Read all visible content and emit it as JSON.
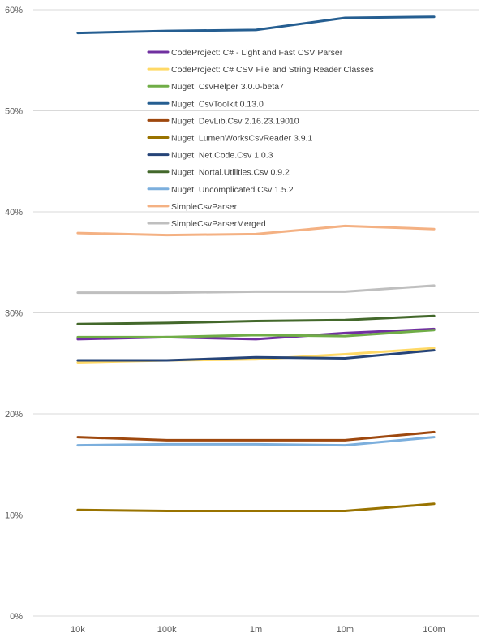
{
  "chart_data": {
    "type": "line",
    "categories": [
      "10k",
      "100k",
      "1m",
      "10m",
      "100m"
    ],
    "ylim": [
      0,
      60
    ],
    "y_ticks": [
      "0%",
      "10%",
      "20%",
      "30%",
      "40%",
      "50%",
      "60%"
    ],
    "grid": "horizontal",
    "legend_position": "top-center",
    "series": [
      {
        "name": "CodeProject: C# - Light and Fast CSV Parser",
        "color": "#7030A0",
        "values": [
          27.4,
          27.6,
          27.4,
          28.0,
          28.4
        ]
      },
      {
        "name": "CodeProject: C# CSV File and String Reader Classes",
        "color": "#FFD966",
        "values": [
          25.1,
          25.3,
          25.4,
          25.9,
          26.5
        ]
      },
      {
        "name": "Nuget: CsvHelper 3.0.0-beta7",
        "color": "#70AD47",
        "values": [
          27.6,
          27.6,
          27.8,
          27.7,
          28.3
        ]
      },
      {
        "name": "Nuget: CsvToolkit 0.13.0",
        "color": "#255E91",
        "values": [
          57.7,
          57.9,
          58.0,
          59.2,
          59.3
        ]
      },
      {
        "name": "Nuget: DevLib.Csv 2.16.23.19010",
        "color": "#9E480E",
        "values": [
          17.7,
          17.4,
          17.4,
          17.4,
          18.2
        ]
      },
      {
        "name": "Nuget: LumenWorksCsvReader 3.9.1",
        "color": "#997300",
        "values": [
          10.5,
          10.4,
          10.4,
          10.4,
          11.1
        ]
      },
      {
        "name": "Nuget: Net.Code.Csv 1.0.3",
        "color": "#264478",
        "values": [
          25.3,
          25.3,
          25.6,
          25.5,
          26.3
        ]
      },
      {
        "name": "Nuget: Nortal.Utilities.Csv 0.9.2",
        "color": "#43682B",
        "values": [
          28.9,
          29.0,
          29.2,
          29.3,
          29.7
        ]
      },
      {
        "name": "Nuget: Uncomplicated.Csv 1.5.2",
        "color": "#7CAFDD",
        "values": [
          16.9,
          17.0,
          17.0,
          16.9,
          17.7
        ]
      },
      {
        "name": "SimpleCsvParser",
        "color": "#F4B183",
        "values": [
          37.9,
          37.7,
          37.8,
          38.6,
          38.3
        ]
      },
      {
        "name": "SimpleCsvParserMerged",
        "color": "#BFBFBF",
        "values": [
          32.0,
          32.0,
          32.1,
          32.1,
          32.7
        ]
      }
    ]
  }
}
